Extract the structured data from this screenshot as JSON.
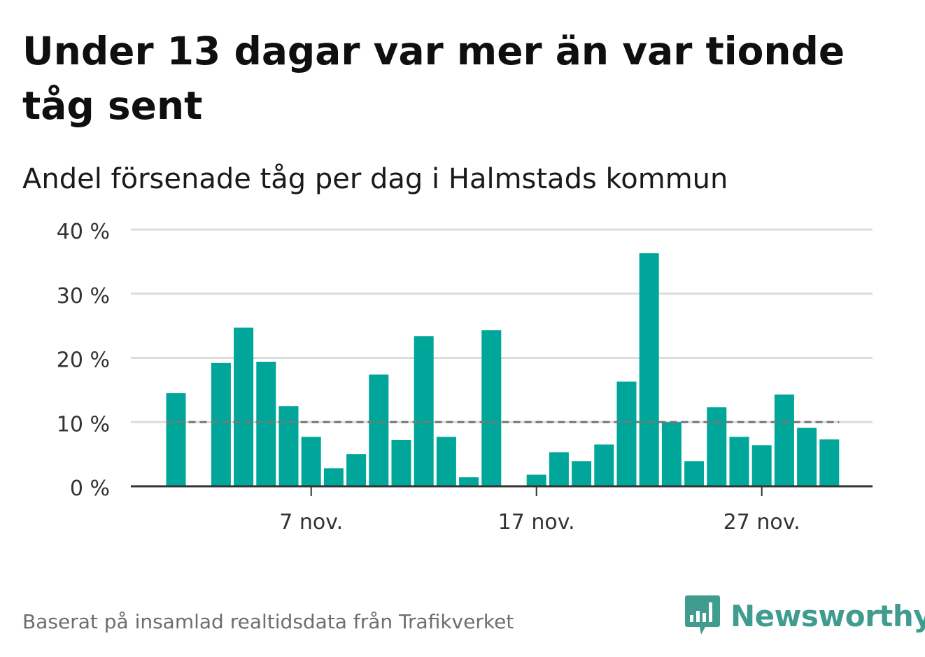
{
  "title": "Under 13 dagar var mer än var tionde tåg sent",
  "subtitle": "Andel försenade tåg per dag i Halmstads kommun",
  "footer": {
    "source": "Baserat på insamlad realtidsdata från Trafikverket",
    "brand": "Newsworthy"
  },
  "colors": {
    "bar": "#00a699",
    "grid": "#dcdcdc",
    "axis": "#333333",
    "reference_line": "#777777",
    "brand": "#3f9c8f"
  },
  "chart_data": {
    "type": "bar",
    "title": "Andel försenade tåg per dag i Halmstads kommun",
    "x_unit": "day of November",
    "x": [
      1,
      2,
      3,
      4,
      5,
      6,
      7,
      8,
      9,
      10,
      11,
      12,
      13,
      14,
      15,
      16,
      17,
      18,
      19,
      20,
      21,
      22,
      23,
      24,
      25,
      26,
      27,
      28,
      29,
      30
    ],
    "values": [
      14.5,
      0,
      19.2,
      24.7,
      19.4,
      12.5,
      7.7,
      2.8,
      5.0,
      17.4,
      7.2,
      23.4,
      7.7,
      1.4,
      24.3,
      0,
      1.8,
      5.3,
      3.9,
      6.5,
      16.3,
      36.3,
      10.0,
      3.9,
      12.3,
      7.7,
      6.4,
      14.3,
      9.1,
      7.3
    ],
    "x_ticks": [
      {
        "x": 7,
        "label": "7 nov."
      },
      {
        "x": 17,
        "label": "17 nov."
      },
      {
        "x": 27,
        "label": "27 nov."
      }
    ],
    "y_ticks": [
      {
        "value": 0,
        "label": "0 %"
      },
      {
        "value": 10,
        "label": "10 %"
      },
      {
        "value": 20,
        "label": "20 %"
      },
      {
        "value": 30,
        "label": "30 %"
      },
      {
        "value": 40,
        "label": "40 %"
      }
    ],
    "ylim": [
      0,
      40
    ],
    "reference_line": 10,
    "reference_line_style": "dashed",
    "grid": true,
    "legend": "none"
  }
}
